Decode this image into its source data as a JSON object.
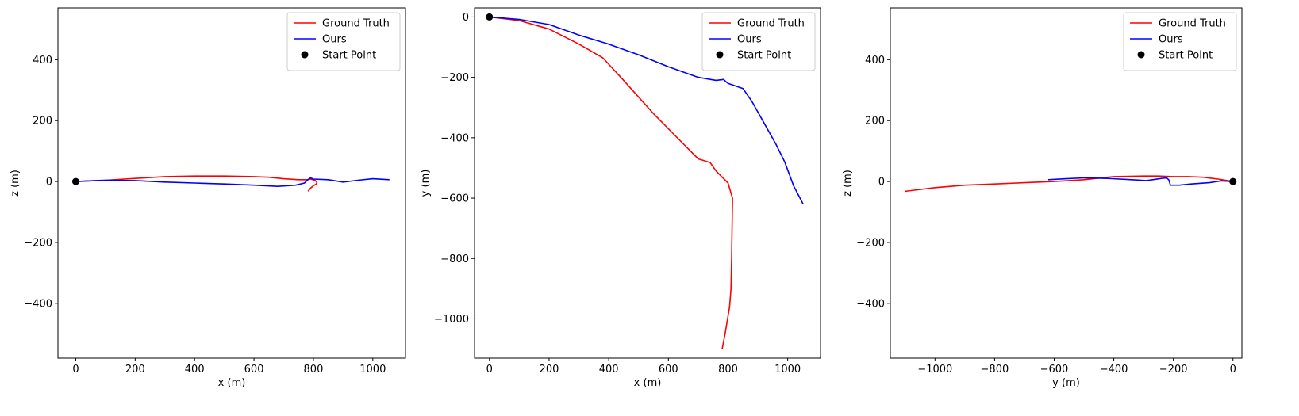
{
  "chart_data": [
    {
      "type": "line",
      "xlabel": "x (m)",
      "ylabel": "z (m)",
      "xlim": [
        -60,
        1110
      ],
      "ylim": [
        -580,
        570
      ],
      "xticks": [
        0,
        200,
        400,
        600,
        800,
        1000
      ],
      "yticks": [
        -400,
        -200,
        0,
        200,
        400
      ],
      "xtick_labels": [
        "0",
        "200",
        "400",
        "600",
        "800",
        "1000"
      ],
      "ytick_labels": [
        "−400",
        "−200",
        "0",
        "200",
        "400"
      ],
      "legend": {
        "position": "top-right",
        "entries": [
          "Ground Truth",
          "Ours",
          "Start Point"
        ]
      },
      "series": [
        {
          "name": "Ground Truth",
          "color": "#ff0000",
          "x": [
            0,
            100,
            200,
            300,
            400,
            500,
            600,
            650,
            700,
            750,
            780,
            790,
            805,
            812,
            810,
            800,
            790,
            782
          ],
          "y": [
            0,
            4,
            10,
            16,
            18,
            18,
            16,
            14,
            9,
            6,
            6,
            8,
            4,
            -2,
            -8,
            -14,
            -22,
            -32
          ]
        },
        {
          "name": "Ours",
          "color": "#0000ff",
          "x": [
            0,
            100,
            200,
            300,
            400,
            500,
            600,
            680,
            740,
            770,
            780,
            790,
            800,
            850,
            900,
            950,
            1000,
            1056
          ],
          "y": [
            0,
            4,
            3,
            -2,
            -5,
            -8,
            -12,
            -16,
            -12,
            -5,
            5,
            12,
            8,
            6,
            -2,
            4,
            9,
            6
          ]
        }
      ],
      "start_point": {
        "name": "Start Point",
        "x": 0,
        "y": 0,
        "color": "#000000"
      }
    },
    {
      "type": "line",
      "xlabel": "x (m)",
      "ylabel": "y (m)",
      "xlim": [
        -50,
        1110
      ],
      "ylim": [
        -1130,
        30
      ],
      "xticks": [
        0,
        200,
        400,
        600,
        800,
        1000
      ],
      "yticks": [
        -1000,
        -800,
        -600,
        -400,
        -200,
        0
      ],
      "xtick_labels": [
        "0",
        "200",
        "400",
        "600",
        "800",
        "1000"
      ],
      "ytick_labels": [
        "−1000",
        "−800",
        "−600",
        "−400",
        "−200",
        "0"
      ],
      "legend": {
        "position": "top-right",
        "entries": [
          "Ground Truth",
          "Ours",
          "Start Point"
        ]
      },
      "series": [
        {
          "name": "Ground Truth",
          "color": "#ff0000",
          "x": [
            0,
            100,
            200,
            300,
            380,
            450,
            550,
            650,
            700,
            740,
            760,
            800,
            815,
            812,
            810,
            805,
            790,
            780
          ],
          "y": [
            0,
            -12,
            -40,
            -90,
            -135,
            -210,
            -320,
            -420,
            -470,
            -482,
            -510,
            -550,
            -600,
            -800,
            -900,
            -960,
            -1050,
            -1100
          ],
          "_note": null
        },
        {
          "name": "Ours",
          "color": "#0000ff",
          "x": [
            0,
            100,
            200,
            300,
            400,
            500,
            600,
            700,
            760,
            785,
            800,
            850,
            880,
            920,
            960,
            990,
            1020,
            1052
          ],
          "y": [
            0,
            -8,
            -25,
            -60,
            -90,
            -125,
            -165,
            -200,
            -210,
            -207,
            -220,
            -237,
            -280,
            -350,
            -420,
            -480,
            -560,
            -620
          ]
        }
      ],
      "start_point": {
        "name": "Start Point",
        "x": 0,
        "y": 0,
        "color": "#000000"
      }
    },
    {
      "type": "line",
      "xlabel": "y (m)",
      "ylabel": "z (m)",
      "xlim": [
        -1150,
        30
      ],
      "ylim": [
        -580,
        570
      ],
      "xticks": [
        -1000,
        -800,
        -600,
        -400,
        -200,
        0
      ],
      "yticks": [
        -400,
        -200,
        0,
        200,
        400
      ],
      "xtick_labels": [
        "−1000",
        "−800",
        "−600",
        "−400",
        "−200",
        "0"
      ],
      "ytick_labels": [
        "−400",
        "−200",
        "0",
        "200",
        "400"
      ],
      "legend": {
        "position": "top-right",
        "entries": [
          "Ground Truth",
          "Ours",
          "Start Point"
        ]
      },
      "series": [
        {
          "name": "Ground Truth",
          "color": "#ff0000",
          "x": [
            -1100,
            -1000,
            -900,
            -800,
            -700,
            -600,
            -500,
            -400,
            -300,
            -250,
            -200,
            -150,
            -100,
            -50,
            0
          ],
          "y": [
            -32,
            -20,
            -12,
            -8,
            -4,
            0,
            6,
            16,
            18,
            18,
            16,
            16,
            14,
            8,
            0
          ]
        },
        {
          "name": "Ours",
          "color": "#0000ff",
          "x": [
            -620,
            -560,
            -500,
            -420,
            -340,
            -290,
            -240,
            -222,
            -215,
            -210,
            -180,
            -140,
            -80,
            -40,
            0
          ],
          "y": [
            6,
            9,
            12,
            10,
            6,
            3,
            10,
            12,
            5,
            -12,
            -12,
            -8,
            -4,
            2,
            0
          ]
        }
      ],
      "start_point": {
        "name": "Start Point",
        "x": 0,
        "y": 0,
        "color": "#000000"
      }
    }
  ]
}
